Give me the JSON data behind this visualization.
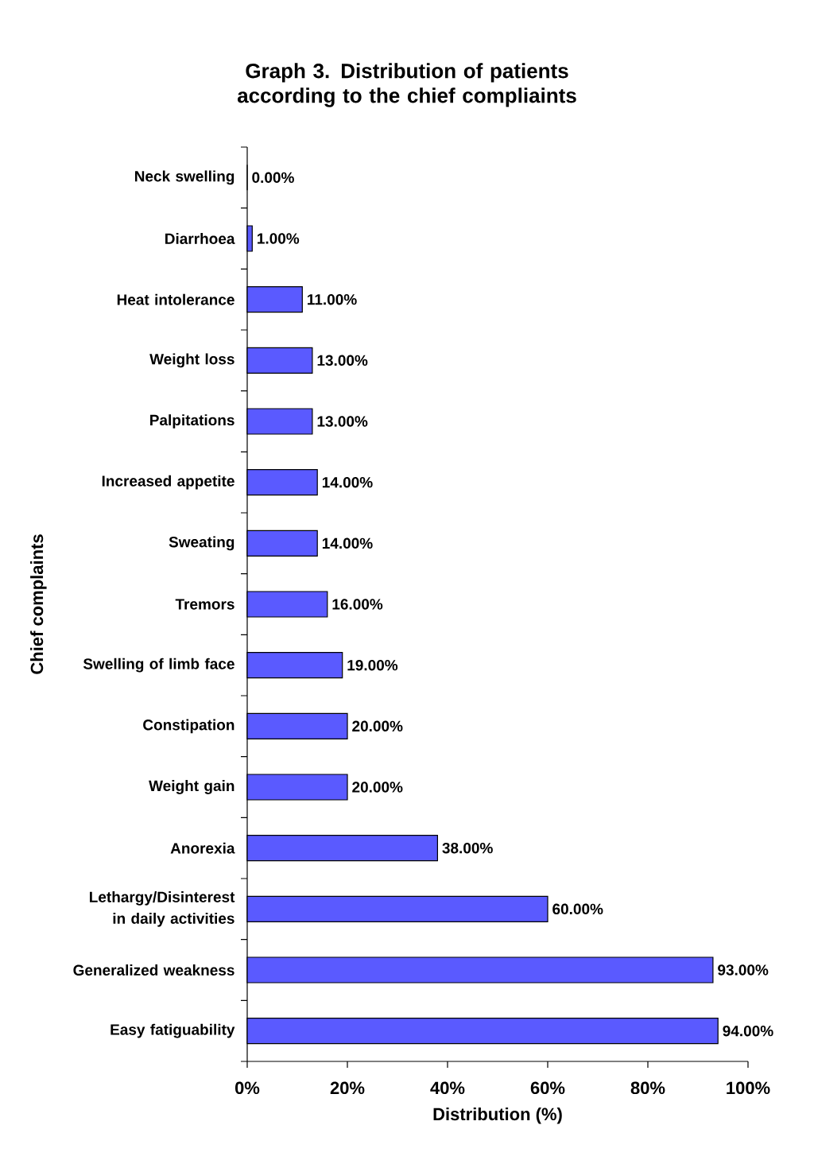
{
  "chart_data": {
    "type": "bar",
    "orientation": "horizontal",
    "title": "Graph 3. Distribution of patients according to the chief compliaints",
    "xlabel": "Distribution (%)",
    "ylabel": "Chief complaints",
    "categories": [
      "Neck swelling",
      "Diarrhoea",
      "Heat intolerance",
      "Weight loss",
      "Palpitations",
      "Increased appetite",
      "Sweating",
      "Tremors",
      "Swelling of limb face",
      "Constipation",
      "Weight gain",
      "Anorexia",
      "Lethargy/Disinterest in daily activities",
      "Generalized weakness",
      "Easy fatiguability"
    ],
    "values": [
      0,
      1,
      11,
      13,
      13,
      14,
      14,
      16,
      19,
      20,
      20,
      38,
      60,
      93,
      94
    ],
    "value_labels": [
      "0.00%",
      "1.00%",
      "11.00%",
      "13.00%",
      "13.00%",
      "14.00%",
      "14.00%",
      "16.00%",
      "19.00%",
      "20.00%",
      "20.00%",
      "38.00%",
      "60.00%",
      "93.00%",
      "94.00%"
    ],
    "color": "#5a5aff",
    "xlim": [
      0,
      100
    ],
    "xticks": [
      {
        "value": 0,
        "label": "0%"
      },
      {
        "value": 20,
        "label": "20%"
      },
      {
        "value": 40,
        "label": "40%"
      },
      {
        "value": 60,
        "label": "60%"
      },
      {
        "value": 80,
        "label": "80%"
      },
      {
        "value": 100,
        "label": "100%"
      }
    ],
    "grid": false
  }
}
